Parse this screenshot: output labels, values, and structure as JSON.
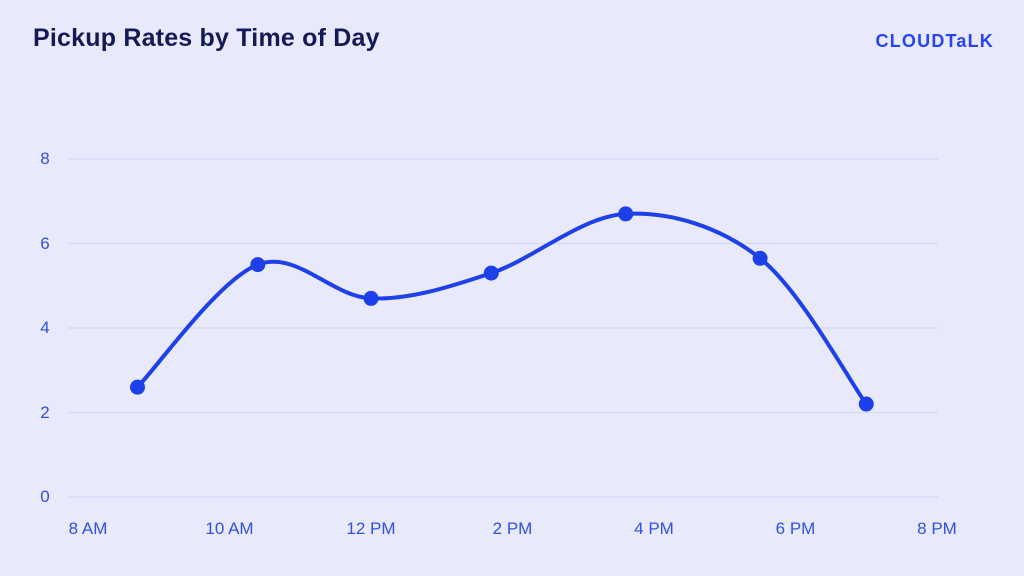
{
  "page": {
    "background_color": "#e8eafb"
  },
  "header": {
    "title": "Pickup Rates by Time of Day",
    "title_color": "#131a56",
    "logo_text": "CLOUDTaLK",
    "logo_color": "#2743f5"
  },
  "chart_data": {
    "type": "line",
    "title": "Pickup Rates by Time of Day",
    "xlabel": "",
    "ylabel": "",
    "x_tick_labels": [
      "8 AM",
      "10 AM",
      "12 PM",
      "2 PM",
      "4 PM",
      "6 PM",
      "8 PM"
    ],
    "x_tick_hours": [
      8,
      10,
      12,
      14,
      16,
      18,
      20
    ],
    "x_range_hours": [
      8,
      20
    ],
    "y_ticks": [
      0,
      2,
      4,
      6,
      8
    ],
    "ylim": [
      0,
      8
    ],
    "grid": "horizontal",
    "legend": false,
    "series": [
      {
        "name": "Pickup rate",
        "points": [
          {
            "hour": 8.7,
            "value": 2.6
          },
          {
            "hour": 10.4,
            "value": 5.5
          },
          {
            "hour": 12.0,
            "value": 4.7
          },
          {
            "hour": 13.7,
            "value": 5.3
          },
          {
            "hour": 15.6,
            "value": 6.7
          },
          {
            "hour": 17.5,
            "value": 5.65
          },
          {
            "hour": 19.0,
            "value": 2.2
          }
        ]
      }
    ],
    "line_color": "#1d40e8",
    "point_color": "#1d40e8",
    "grid_color": "#d5daf4",
    "tick_label_color": "#3150df"
  }
}
